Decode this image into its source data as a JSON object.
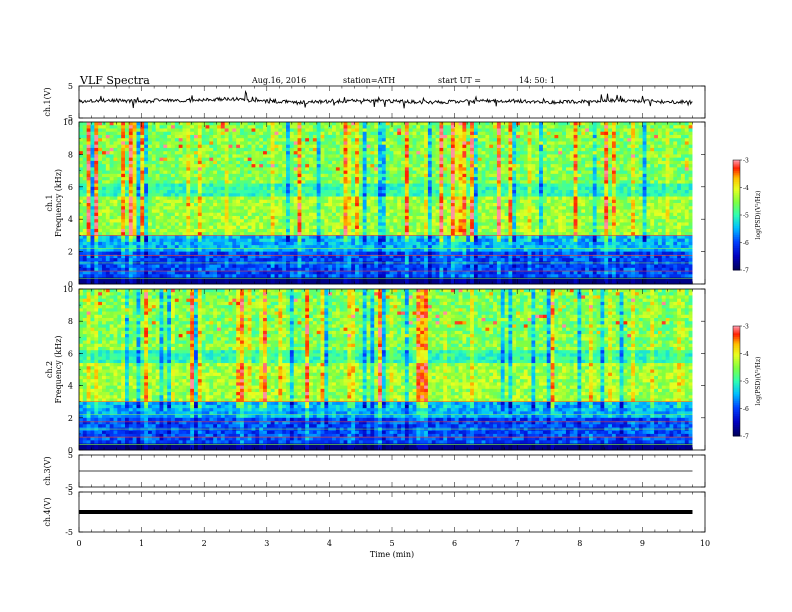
{
  "header": {
    "title": "VLF  Spectra",
    "date": "Aug.16, 2016",
    "station": "station=ATH",
    "start_label": "start  UT  =",
    "start_time": "14: 50: 1"
  },
  "chart_data": [
    {
      "type": "line",
      "panel": "ch1-waveform",
      "ylabel": "ch.1(V)",
      "ylim": [
        -5,
        5
      ],
      "yticks": [
        "5",
        "-5"
      ],
      "xlim": [
        0,
        10
      ],
      "baseline_v": 0,
      "series": [
        {
          "x_range_min": [
            0,
            9.8
          ]
        }
      ]
    },
    {
      "type": "heatmap",
      "panel": "ch1-spectrogram",
      "ylabel": "ch.1\nFrequency  (kHz)",
      "ylabel_line1": "ch.1",
      "ylabel_line2": "Frequency  (kHz)",
      "xlim": [
        0,
        10
      ],
      "ylim": [
        0,
        10
      ],
      "yticks": [
        "0",
        "2",
        "4",
        "6",
        "8",
        "10"
      ],
      "data_xmax": 9.8,
      "seed": 7,
      "colorbar": {
        "label": "log(PSD)(V²/Hz)",
        "range": [
          -7,
          -3
        ],
        "ticks": [
          "-3",
          "-4",
          "-5",
          "-6",
          "-7"
        ]
      }
    },
    {
      "type": "heatmap",
      "panel": "ch2-spectrogram",
      "ylabel_line1": "ch.2",
      "ylabel_line2": "Frequency  (kHz)",
      "xlim": [
        0,
        10
      ],
      "ylim": [
        0,
        10
      ],
      "yticks": [
        "0",
        "2",
        "4",
        "6",
        "8",
        "10"
      ],
      "data_xmax": 9.8,
      "seed": 13,
      "colorbar": {
        "label": "log(PSD)(V²/Hz)",
        "range": [
          -7,
          -3
        ],
        "ticks": [
          "-3",
          "-4",
          "-5",
          "-6",
          "-7"
        ]
      }
    },
    {
      "type": "line",
      "panel": "ch3-waveform",
      "ylabel": "ch.3(V)",
      "ylim": [
        -5,
        5
      ],
      "yticks": [
        "5",
        "-5"
      ],
      "xlim": [
        0,
        10
      ],
      "value_v": 0
    },
    {
      "type": "line",
      "panel": "ch4-waveform",
      "ylabel": "ch.4(V)",
      "ylim": [
        -5,
        5
      ],
      "yticks": [
        "5",
        "-5"
      ],
      "xlim": [
        0,
        10
      ],
      "value_v": 0
    }
  ],
  "xaxis": {
    "label": "Time  (min)",
    "ticks": [
      "0",
      "1",
      "2",
      "3",
      "4",
      "5",
      "6",
      "7",
      "8",
      "9",
      "10"
    ]
  }
}
